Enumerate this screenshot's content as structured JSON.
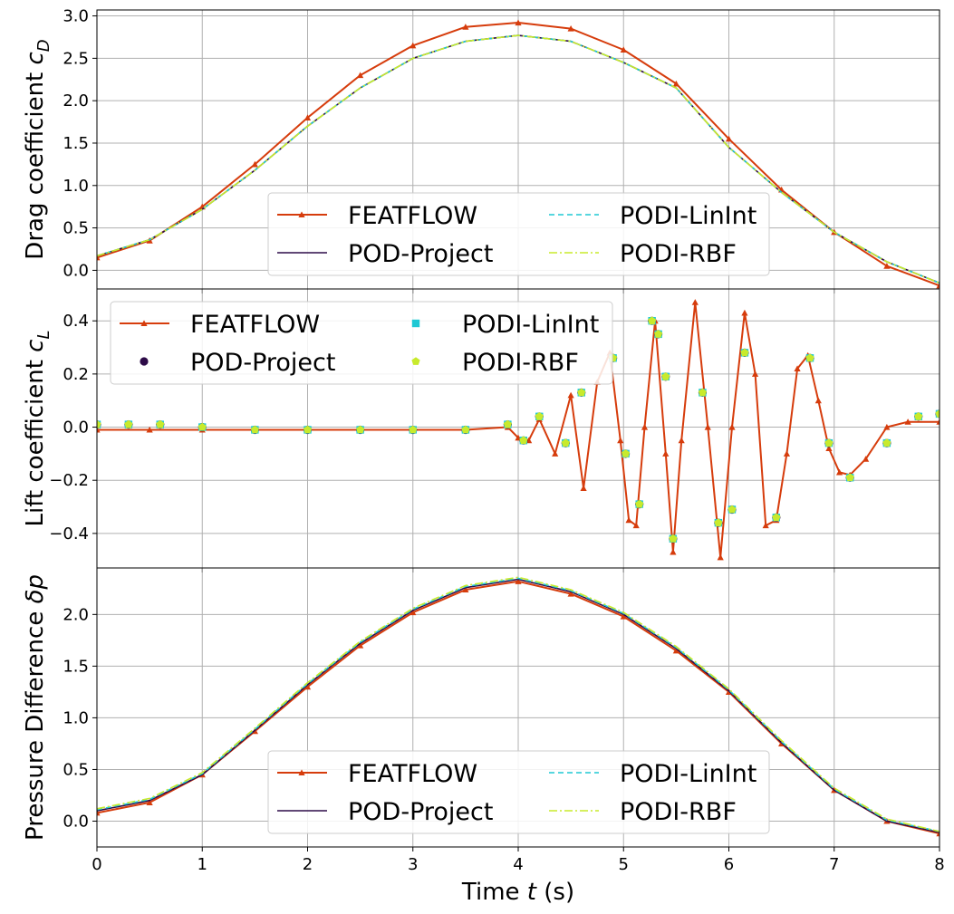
{
  "colors": {
    "featflow": "#d63c0c",
    "pod_project": "#2d0b48",
    "podi_linint": "#1ec8d4",
    "podi_rbf": "#c8ea2c",
    "grid": "#b0b0b0"
  },
  "chart_data": [
    {
      "type": "line",
      "ylabel_text": "Drag coefficient ",
      "ylabel_math": "c",
      "ylabel_sub": "D",
      "xlim": [
        0,
        8
      ],
      "ylim": [
        -0.22,
        3.07
      ],
      "yticks": [
        0.0,
        0.5,
        1.0,
        1.5,
        2.0,
        2.5,
        3.0
      ],
      "ytick_labels": [
        "0.0",
        "0.5",
        "1.0",
        "1.5",
        "2.0",
        "2.5",
        "3.0"
      ],
      "xticks": [
        0,
        1,
        2,
        3,
        4,
        5,
        6,
        7,
        8
      ],
      "grid": true,
      "legend": {
        "placement": "lower-center",
        "ncol": 2,
        "entries": [
          "FEATFLOW",
          "POD-Project",
          "PODI-LinInt",
          "PODI-RBF"
        ]
      },
      "series": [
        {
          "name": "FEATFLOW",
          "style": "line-triangle",
          "x": [
            0,
            0.5,
            1,
            1.5,
            2,
            2.5,
            3,
            3.5,
            4,
            4.5,
            5,
            5.5,
            6,
            6.5,
            7,
            7.5,
            8
          ],
          "values": [
            0.15,
            0.35,
            0.75,
            1.25,
            1.8,
            2.3,
            2.65,
            2.87,
            2.92,
            2.85,
            2.6,
            2.2,
            1.55,
            0.95,
            0.45,
            0.05,
            -0.18
          ]
        },
        {
          "name": "POD-Project",
          "style": "line",
          "x": [
            0,
            0.5,
            1,
            1.5,
            2,
            2.5,
            3,
            3.5,
            4,
            4.5,
            5,
            5.5,
            6,
            6.5,
            7,
            7.5,
            8
          ],
          "values": [
            0.17,
            0.36,
            0.72,
            1.18,
            1.7,
            2.15,
            2.5,
            2.7,
            2.77,
            2.7,
            2.45,
            2.15,
            1.45,
            0.92,
            0.45,
            0.1,
            -0.15
          ]
        },
        {
          "name": "PODI-LinInt",
          "style": "dashed",
          "x": [
            0,
            0.5,
            1,
            1.5,
            2,
            2.5,
            3,
            3.5,
            4,
            4.5,
            5,
            5.5,
            6,
            6.5,
            7,
            7.5,
            8
          ],
          "values": [
            0.17,
            0.36,
            0.72,
            1.18,
            1.7,
            2.15,
            2.5,
            2.7,
            2.77,
            2.7,
            2.45,
            2.15,
            1.45,
            0.92,
            0.45,
            0.1,
            -0.15
          ]
        },
        {
          "name": "PODI-RBF",
          "style": "dashdot",
          "x": [
            0,
            0.5,
            1,
            1.5,
            2,
            2.5,
            3,
            3.5,
            4,
            4.5,
            5,
            5.5,
            6,
            6.5,
            7,
            7.5,
            8
          ],
          "values": [
            0.17,
            0.36,
            0.72,
            1.18,
            1.7,
            2.15,
            2.5,
            2.7,
            2.77,
            2.7,
            2.45,
            2.15,
            1.45,
            0.92,
            0.45,
            0.1,
            -0.15
          ]
        }
      ]
    },
    {
      "type": "line",
      "ylabel_text": "Lift coefficient ",
      "ylabel_math": "c",
      "ylabel_sub": "L",
      "xlim": [
        0,
        8
      ],
      "ylim": [
        -0.53,
        0.52
      ],
      "yticks": [
        -0.4,
        -0.2,
        0.0,
        0.2,
        0.4
      ],
      "ytick_labels": [
        "−0.4",
        "−0.2",
        "0.0",
        "0.2",
        "0.4"
      ],
      "xticks": [
        0,
        1,
        2,
        3,
        4,
        5,
        6,
        7,
        8
      ],
      "grid": true,
      "legend": {
        "placement": "upper-left",
        "ncol": 2,
        "entries": [
          "FEATFLOW",
          "POD-Project",
          "PODI-LinInt",
          "PODI-RBF"
        ]
      },
      "series": [
        {
          "name": "FEATFLOW",
          "style": "line-triangle",
          "x": [
            0,
            0.5,
            1,
            1.5,
            2,
            2.5,
            3,
            3.5,
            3.9,
            4.0,
            4.1,
            4.2,
            4.35,
            4.5,
            4.62,
            4.75,
            4.87,
            4.97,
            5.05,
            5.12,
            5.2,
            5.3,
            5.4,
            5.47,
            5.55,
            5.68,
            5.8,
            5.92,
            6.03,
            6.15,
            6.25,
            6.35,
            6.45,
            6.55,
            6.65,
            6.75,
            6.85,
            6.95,
            7.05,
            7.15,
            7.3,
            7.5,
            7.7,
            8.0
          ],
          "values": [
            -0.01,
            -0.01,
            -0.01,
            -0.01,
            -0.01,
            -0.01,
            -0.01,
            -0.01,
            0.0,
            -0.04,
            -0.05,
            0.03,
            -0.1,
            0.12,
            -0.23,
            0.17,
            0.28,
            -0.05,
            -0.35,
            -0.37,
            0.0,
            0.4,
            -0.1,
            -0.47,
            -0.05,
            0.47,
            0.0,
            -0.49,
            0.0,
            0.43,
            0.2,
            -0.37,
            -0.35,
            -0.1,
            0.22,
            0.27,
            0.1,
            -0.08,
            -0.17,
            -0.18,
            -0.12,
            0.0,
            0.02,
            0.02
          ]
        },
        {
          "name": "POD-Project",
          "style": "circle",
          "x": [
            0.0,
            0.3,
            0.6,
            1.0,
            1.5,
            2.0,
            2.5,
            3.0,
            3.5,
            3.9,
            4.05,
            4.2,
            4.45,
            4.6,
            4.9,
            5.02,
            5.15,
            5.27,
            5.33,
            5.4,
            5.47,
            5.75,
            5.9,
            6.03,
            6.15,
            6.45,
            6.77,
            6.95,
            7.15,
            7.5,
            7.8,
            8.0
          ],
          "values": [
            0.01,
            0.01,
            0.01,
            0.0,
            -0.01,
            -0.01,
            -0.01,
            -0.01,
            -0.01,
            0.01,
            -0.05,
            0.04,
            -0.06,
            0.13,
            0.26,
            -0.1,
            -0.29,
            0.4,
            0.35,
            0.19,
            -0.42,
            0.13,
            -0.36,
            -0.31,
            0.28,
            -0.34,
            0.26,
            -0.06,
            -0.19,
            -0.06,
            0.04,
            0.05
          ]
        },
        {
          "name": "PODI-LinInt",
          "style": "square",
          "x": [
            0.0,
            0.3,
            0.6,
            1.0,
            1.5,
            2.0,
            2.5,
            3.0,
            3.5,
            3.9,
            4.05,
            4.2,
            4.45,
            4.6,
            4.9,
            5.02,
            5.15,
            5.27,
            5.33,
            5.4,
            5.47,
            5.75,
            5.9,
            6.03,
            6.15,
            6.45,
            6.77,
            6.95,
            7.15,
            7.5,
            7.8,
            8.0
          ],
          "values": [
            0.01,
            0.01,
            0.01,
            0.0,
            -0.01,
            -0.01,
            -0.01,
            -0.01,
            -0.01,
            0.01,
            -0.05,
            0.04,
            -0.06,
            0.13,
            0.26,
            -0.1,
            -0.29,
            0.4,
            0.35,
            0.19,
            -0.42,
            0.13,
            -0.36,
            -0.31,
            0.28,
            -0.34,
            0.26,
            -0.06,
            -0.19,
            -0.06,
            0.04,
            0.05
          ]
        },
        {
          "name": "PODI-RBF",
          "style": "pentagon",
          "x": [
            0.0,
            0.3,
            0.6,
            1.0,
            1.5,
            2.0,
            2.5,
            3.0,
            3.5,
            3.9,
            4.05,
            4.2,
            4.45,
            4.6,
            4.9,
            5.02,
            5.15,
            5.27,
            5.33,
            5.4,
            5.47,
            5.75,
            5.9,
            6.03,
            6.15,
            6.45,
            6.77,
            6.95,
            7.15,
            7.5,
            7.8,
            8.0
          ],
          "values": [
            0.01,
            0.01,
            0.01,
            0.0,
            -0.01,
            -0.01,
            -0.01,
            -0.01,
            -0.01,
            0.01,
            -0.05,
            0.04,
            -0.06,
            0.13,
            0.26,
            -0.1,
            -0.29,
            0.4,
            0.35,
            0.19,
            -0.42,
            0.13,
            -0.36,
            -0.31,
            0.28,
            -0.34,
            0.26,
            -0.06,
            -0.19,
            -0.06,
            0.04,
            0.05
          ]
        }
      ]
    },
    {
      "type": "line",
      "ylabel_text": "Pressure Difference ",
      "ylabel_math": "δp",
      "ylabel_sub": "",
      "xlabel_text": "Time ",
      "xlabel_math": "t",
      "xlabel_unit": " (s)",
      "xlim": [
        0,
        8
      ],
      "ylim": [
        -0.25,
        2.45
      ],
      "yticks": [
        0.0,
        0.5,
        1.0,
        1.5,
        2.0
      ],
      "ytick_labels": [
        "0.0",
        "0.5",
        "1.0",
        "1.5",
        "2.0"
      ],
      "xticks": [
        0,
        1,
        2,
        3,
        4,
        5,
        6,
        7,
        8
      ],
      "xtick_labels": [
        "0",
        "1",
        "2",
        "3",
        "4",
        "5",
        "6",
        "7",
        "8"
      ],
      "grid": true,
      "legend": {
        "placement": "lower-center",
        "ncol": 2,
        "entries": [
          "FEATFLOW",
          "POD-Project",
          "PODI-LinInt",
          "PODI-RBF"
        ]
      },
      "series": [
        {
          "name": "FEATFLOW",
          "style": "line-triangle",
          "x": [
            0,
            0.5,
            1,
            1.5,
            2,
            2.5,
            3,
            3.5,
            4,
            4.5,
            5,
            5.5,
            6,
            6.5,
            7,
            7.5,
            8
          ],
          "values": [
            0.08,
            0.18,
            0.45,
            0.87,
            1.3,
            1.7,
            2.02,
            2.24,
            2.32,
            2.2,
            1.98,
            1.65,
            1.25,
            0.75,
            0.3,
            0.0,
            -0.12
          ]
        },
        {
          "name": "POD-Project",
          "style": "line",
          "x": [
            0,
            0.5,
            1,
            1.5,
            2,
            2.5,
            3,
            3.5,
            4,
            4.5,
            5,
            5.5,
            6,
            6.5,
            7,
            7.5,
            8
          ],
          "values": [
            0.1,
            0.2,
            0.45,
            0.88,
            1.32,
            1.72,
            2.04,
            2.26,
            2.34,
            2.22,
            2.0,
            1.67,
            1.26,
            0.76,
            0.3,
            0.0,
            -0.11
          ]
        },
        {
          "name": "PODI-LinInt",
          "style": "dashed",
          "x": [
            0,
            0.5,
            1,
            1.5,
            2,
            2.5,
            3,
            3.5,
            4,
            4.5,
            5,
            5.5,
            6,
            6.5,
            7,
            7.5,
            8
          ],
          "values": [
            0.11,
            0.21,
            0.46,
            0.89,
            1.33,
            1.73,
            2.05,
            2.27,
            2.35,
            2.23,
            2.01,
            1.68,
            1.27,
            0.77,
            0.31,
            0.01,
            -0.1
          ]
        },
        {
          "name": "PODI-RBF",
          "style": "dashdot",
          "x": [
            0,
            0.5,
            1,
            1.5,
            2,
            2.5,
            3,
            3.5,
            4,
            4.5,
            5,
            5.5,
            6,
            6.5,
            7,
            7.5,
            8
          ],
          "values": [
            0.12,
            0.22,
            0.47,
            0.9,
            1.34,
            1.74,
            2.06,
            2.28,
            2.36,
            2.24,
            2.02,
            1.69,
            1.28,
            0.78,
            0.32,
            0.02,
            -0.1
          ]
        }
      ]
    }
  ]
}
